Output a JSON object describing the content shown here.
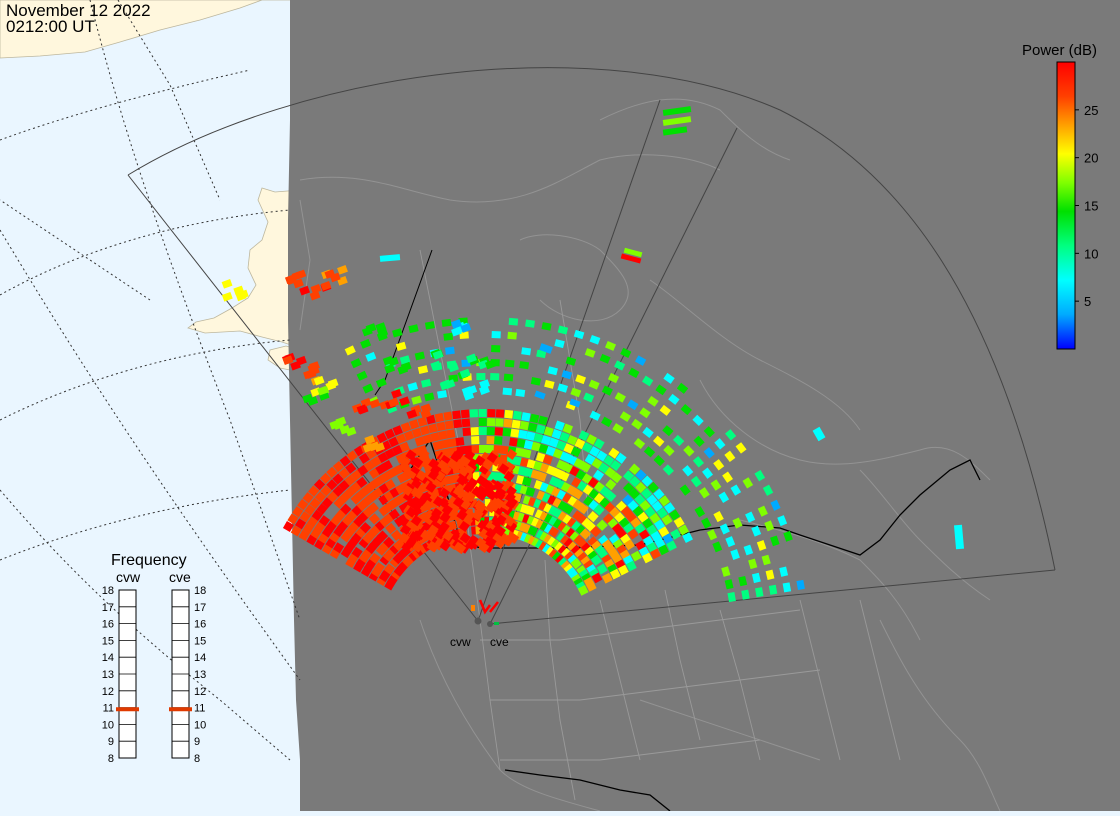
{
  "header": {
    "date": "November 12 2022",
    "time": "0212:00 UT"
  },
  "colorbar": {
    "title": "Power (dB)",
    "ticks": [
      {
        "label": "25",
        "value": 25
      },
      {
        "label": "20",
        "value": 20
      },
      {
        "label": "15",
        "value": 15
      },
      {
        "label": "10",
        "value": 10
      },
      {
        "label": "5",
        "value": 5
      }
    ],
    "min": 0,
    "max": 30,
    "stops": [
      "#0000ff",
      "#00aaff",
      "#00ffff",
      "#00ff80",
      "#00e000",
      "#80ff00",
      "#ffff00",
      "#ffa000",
      "#ff4000",
      "#ff0000"
    ]
  },
  "frequency": {
    "title": "Frequency",
    "left_label": "cvw",
    "right_label": "cve",
    "levels": [
      "18",
      "17",
      "16",
      "15",
      "14",
      "13",
      "12",
      "11",
      "10",
      "9",
      "8"
    ],
    "cvw_value": 10.9,
    "cve_value": 10.9,
    "marker_color": "#e03a00"
  },
  "radars": [
    {
      "label": "cvw"
    },
    {
      "label": "cve"
    }
  ],
  "colors": {
    "ocean": "#eaf6ff",
    "land": "#fff7dd",
    "night": "#7a7a7a"
  }
}
